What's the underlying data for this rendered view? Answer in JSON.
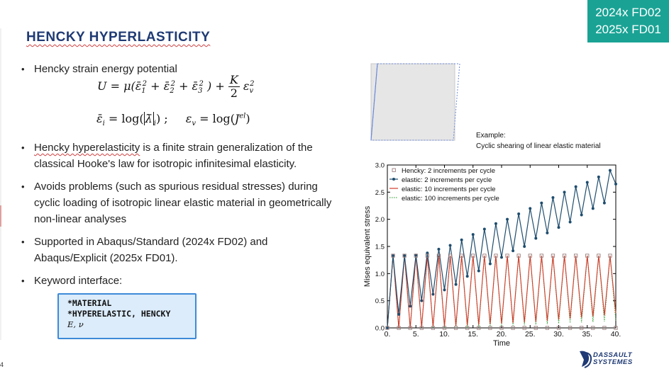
{
  "badge": {
    "line1": "2024x FD02",
    "line2": "2025x FD01"
  },
  "slide": {
    "title": "HENCKY HYPERLASTICITY",
    "page_number": "4"
  },
  "bullets": {
    "b1": "Hencky strain energy potential",
    "b2_part1": "Hencky hyperelasticity",
    "b2_part2": " is a finite strain generalization of the classical Hooke's law for isotropic infinitesimal elasticity.",
    "b3": "Avoids problems (such as spurious residual stresses) during cyclic loading of isotropic linear elastic material in geometrically non-linear analyses",
    "b4": "Supported in Abaqus/Standard (2024x FD02) and Abaqus/Explicit (2025x FD01).",
    "b5": "Keyword interface:"
  },
  "keyword_box": {
    "line1": "*MATERIAL",
    "line2": "*HYPERELASTIC, HENCKY",
    "line3": "E, ν"
  },
  "example": {
    "line1": "Example:",
    "line2": "Cyclic shearing of linear elastic material"
  },
  "logo": {
    "line1": "DASSAULT",
    "line2": "SYSTEMES"
  },
  "colors": {
    "title": "#1f3a74",
    "badge": "#1aa395",
    "hencky": "#9b7d7d",
    "elastic2": "#1f4d6e",
    "elastic10": "#d23b2a",
    "elastic100": "#4caa4c"
  },
  "chart_data": {
    "type": "line",
    "xlabel": "Time",
    "ylabel": "Mises equivalent stress",
    "xlim": [
      0,
      40
    ],
    "ylim": [
      0,
      3.0
    ],
    "xticks": [
      "0.",
      "5.",
      "10.",
      "15.",
      "20.",
      "25.",
      "30.",
      "35.",
      "40."
    ],
    "yticks": [
      "0.0",
      "0.5",
      "1.0",
      "1.5",
      "2.0",
      "2.5",
      "3.0"
    ],
    "legend_position": "top-left",
    "series": [
      {
        "name": "Hencky: 2 increments per cycle",
        "style": "squares",
        "x": [
          0,
          1,
          2,
          3,
          4,
          5,
          6,
          7,
          8,
          9,
          10,
          11,
          12,
          13,
          14,
          15,
          16,
          17,
          18,
          19,
          20,
          21,
          22,
          23,
          24,
          25,
          26,
          27,
          28,
          29,
          30,
          31,
          32,
          33,
          34,
          35,
          36,
          37,
          38,
          39,
          40
        ],
        "y": [
          0,
          1.33,
          0,
          1.33,
          0,
          1.33,
          0,
          1.33,
          0,
          1.33,
          0,
          1.33,
          0,
          1.33,
          0,
          1.33,
          0,
          1.33,
          0,
          1.33,
          0,
          1.33,
          0,
          1.33,
          0,
          1.33,
          0,
          1.33,
          0,
          1.33,
          0,
          1.33,
          0,
          1.33,
          0,
          1.33,
          0,
          1.33,
          0,
          1.33,
          0
        ]
      },
      {
        "name": "elastic: 2 increments per cycle",
        "style": "line-dots",
        "x": [
          0,
          1,
          2,
          3,
          4,
          5,
          6,
          7,
          8,
          9,
          10,
          11,
          12,
          13,
          14,
          15,
          16,
          17,
          18,
          19,
          20,
          21,
          22,
          23,
          24,
          25,
          26,
          27,
          28,
          29,
          30,
          31,
          32,
          33,
          34,
          35,
          36,
          37,
          38,
          39,
          40
        ],
        "y": [
          0,
          1.33,
          0.25,
          1.33,
          0.4,
          1.34,
          0.5,
          1.38,
          0.62,
          1.45,
          0.7,
          1.52,
          0.8,
          1.62,
          0.95,
          1.72,
          1.05,
          1.82,
          1.18,
          1.92,
          1.3,
          2.0,
          1.42,
          2.1,
          1.5,
          2.2,
          1.65,
          2.3,
          1.75,
          2.4,
          1.85,
          2.5,
          1.95,
          2.6,
          2.08,
          2.68,
          2.2,
          2.78,
          2.3,
          2.9,
          2.65
        ]
      },
      {
        "name": "elastic: 10 increments per cycle",
        "style": "line",
        "x": [
          0,
          1,
          2,
          3,
          4,
          5,
          6,
          7,
          8,
          9,
          10,
          11,
          12,
          13,
          14,
          15,
          16,
          17,
          18,
          19,
          20,
          21,
          22,
          23,
          24,
          25,
          26,
          27,
          28,
          29,
          30,
          31,
          32,
          33,
          34,
          35,
          36,
          37,
          38,
          39,
          40
        ],
        "y": [
          0,
          1.33,
          0,
          1.33,
          0,
          1.33,
          0.01,
          1.33,
          0.02,
          1.33,
          0.03,
          1.33,
          0.04,
          1.33,
          0.05,
          1.33,
          0.06,
          1.33,
          0.07,
          1.33,
          0.08,
          1.33,
          0.09,
          1.33,
          0.1,
          1.33,
          0.11,
          1.33,
          0.13,
          1.33,
          0.15,
          1.33,
          0.17,
          1.33,
          0.19,
          1.33,
          0.21,
          1.33,
          0.23,
          1.33,
          0.27
        ]
      },
      {
        "name": "elastic: 100 increments per cycle",
        "style": "dotted",
        "x": [
          0,
          1,
          2,
          3,
          4,
          5,
          6,
          7,
          8,
          9,
          10,
          11,
          12,
          13,
          14,
          15,
          16,
          17,
          18,
          19,
          20,
          21,
          22,
          23,
          24,
          25,
          26,
          27,
          28,
          29,
          30,
          31,
          32,
          33,
          34,
          35,
          36,
          37,
          38,
          39,
          40
        ],
        "y": [
          0,
          1.33,
          0,
          1.33,
          0,
          1.33,
          0,
          1.33,
          0,
          1.33,
          0,
          1.33,
          0,
          1.33,
          0,
          1.33,
          0.01,
          1.33,
          0.02,
          1.33,
          0.03,
          1.33,
          0.04,
          1.33,
          0.05,
          1.33,
          0.06,
          1.33,
          0.07,
          1.33,
          0.08,
          1.33,
          0.09,
          1.33,
          0.1,
          1.33,
          0.11,
          1.33,
          0.12,
          1.33,
          0.13
        ]
      }
    ]
  }
}
